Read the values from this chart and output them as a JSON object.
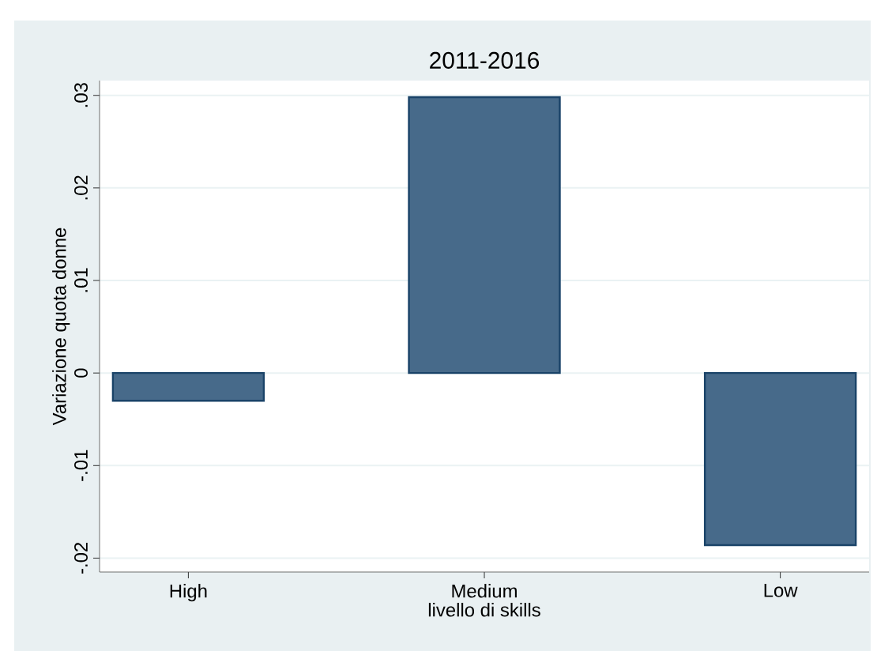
{
  "chart_data": {
    "type": "bar",
    "title": "2011-2016",
    "xlabel": "livello di skills",
    "ylabel": "Variazione quota donne",
    "categories": [
      "High",
      "Medium",
      "Low"
    ],
    "values": [
      -0.003,
      0.0298,
      -0.0186
    ],
    "color": "#476a8a",
    "ylim": [
      -0.0215,
      0.0316
    ],
    "yticks": [
      {
        "value": -0.02,
        "label": "-.02"
      },
      {
        "value": -0.01,
        "label": "-.01"
      },
      0,
      {
        "value": 0.01,
        "label": ".01"
      },
      {
        "value": 0.02,
        "label": ".02"
      },
      {
        "value": 0.03,
        "label": ".03"
      }
    ],
    "grid": "y"
  }
}
